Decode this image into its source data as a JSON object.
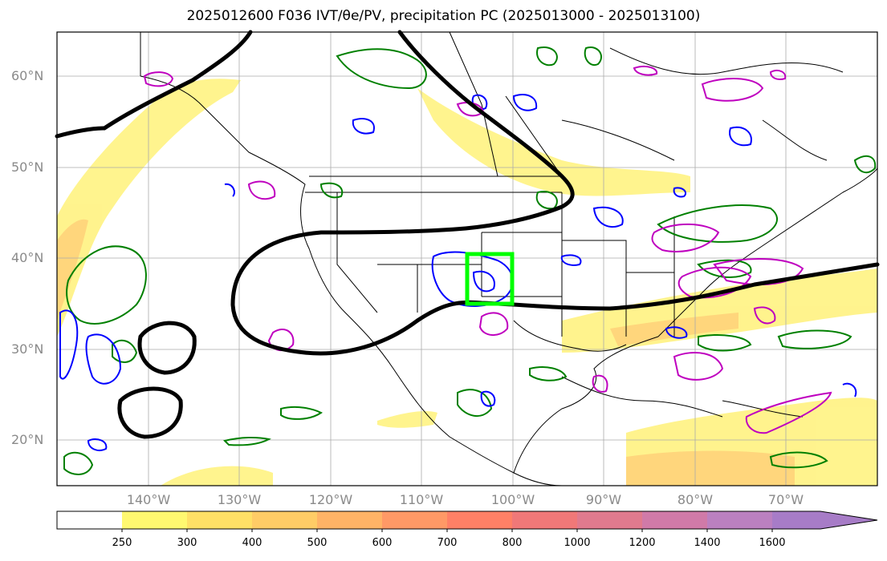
{
  "title": "2025012600 F036 IVT/θe/PV, precipitation PC (2025013000 - 2025013100)",
  "map": {
    "lat_labels": [
      "60°N",
      "50°N",
      "40°N",
      "30°N",
      "20°N"
    ],
    "lon_labels": [
      "140°W",
      "130°W",
      "120°W",
      "110°W",
      "100°W",
      "90°W",
      "80°W",
      "70°W"
    ],
    "colors": {
      "ivt_fill": "#fff27a",
      "ivt_fill_strong": "#ffcf66",
      "theta_e": "#000000",
      "pv_blue": "#0000ff",
      "precip_green": "#008000",
      "magenta": "#bf00bf",
      "highlight_box": "#00ff00"
    }
  },
  "colorbar": {
    "labels": [
      "250",
      "300",
      "400",
      "500",
      "600",
      "700",
      "800",
      "1000",
      "1200",
      "1400",
      "1600"
    ],
    "colors": [
      "#ffffff",
      "#fff870",
      "#ffe066",
      "#ffcc66",
      "#ffb366",
      "#ff9966",
      "#ff8066",
      "#f07878",
      "#e07a8e",
      "#d07aa8",
      "#bb80c0",
      "#a77cc7"
    ]
  }
}
